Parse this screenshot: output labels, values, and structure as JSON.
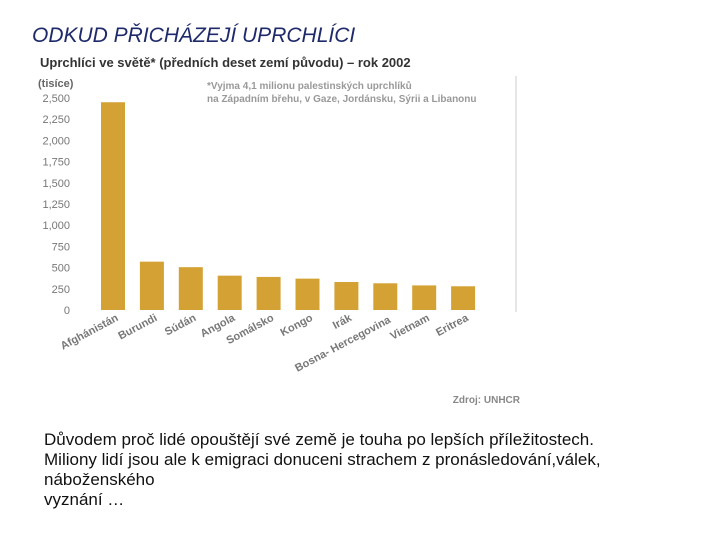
{
  "slide": {
    "title": "ODKUD PŘICHÁZEJÍ UPRCHLÍCI",
    "body_lines": [
      "Důvodem proč lidé opouštějí své země je touha po lepších příležitostech.",
      "Miliony lidí jsou ale k emigraci donuceni strachem z pronásledování,válek,",
      "náboženského",
      "vyznání …"
    ]
  },
  "chart_data": {
    "type": "bar",
    "title": "Uprchlíci ve světě* (předních deset zemí původu) – rok 2002",
    "ylabel": "(tisíce)",
    "note_lines": [
      "*Vyjma 4,1 milionu palestinských uprchlíků",
      "na Západním břehu, v Gaze, Jordánsku, Sýrii a Libanonu"
    ],
    "source": "Zdroj: UNHCR",
    "categories": [
      "Afghánistán",
      "Burundi",
      "Súdán",
      "Angola",
      "Somálsko",
      "Kongo",
      "Irák",
      "Bosna- Hercegovina",
      "Vietnam",
      "Eritrea"
    ],
    "values": [
      2450,
      570,
      505,
      405,
      390,
      370,
      330,
      315,
      290,
      280
    ],
    "yticks": [
      "0",
      "250",
      "500",
      "750",
      "1,000",
      "1,250",
      "1,500",
      "1,750",
      "2,000",
      "2,250",
      "2,500"
    ],
    "ylim": [
      0,
      2500
    ],
    "bar_color": "#d4a234",
    "grid": false
  }
}
